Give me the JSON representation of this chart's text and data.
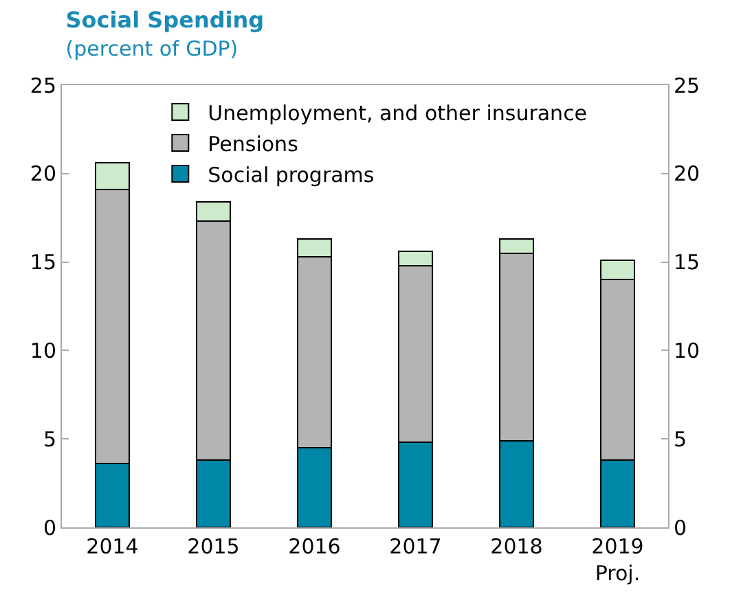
{
  "chart_data": {
    "type": "bar",
    "title": "Social Spending",
    "subtitle": "(percent of GDP)",
    "categories": [
      "2014",
      "2015",
      "2016",
      "2017",
      "2018",
      "2019\nProj."
    ],
    "stacked": true,
    "series": [
      {
        "name": "Social programs",
        "color": "#0087a8",
        "values": [
          3.6,
          3.8,
          4.5,
          4.8,
          4.9,
          3.8
        ]
      },
      {
        "name": "Pensions",
        "color": "#b4b4b4",
        "values": [
          15.5,
          13.5,
          10.8,
          10.0,
          10.6,
          10.2
        ]
      },
      {
        "name": "Unemployment, and other insurance",
        "color": "#cdeacd",
        "values": [
          1.5,
          1.1,
          1.0,
          0.8,
          0.8,
          1.1
        ]
      }
    ],
    "ylim": [
      0,
      25
    ],
    "yticks": [
      0,
      5,
      10,
      15,
      20,
      25
    ],
    "y2lim": [
      0,
      25
    ],
    "y2ticks": [
      0,
      5,
      10,
      15,
      20,
      25
    ],
    "grid": false,
    "legend": "top left"
  }
}
